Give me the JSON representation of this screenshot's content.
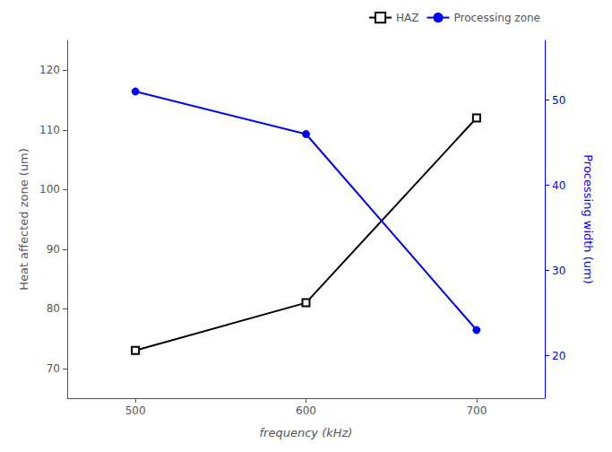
{
  "chart_data": {
    "type": "line",
    "xlabel": "frequency (kHz)",
    "ylabel": "Heat affected zone (um)",
    "y2label": "Processing width (um)",
    "x": [
      500,
      600,
      700
    ],
    "series": [
      {
        "name": "HAZ",
        "color": "#000000",
        "values": [
          73,
          81,
          112
        ],
        "marker": "square"
      },
      {
        "name": "Processing zone",
        "color": "#0000ff",
        "values": [
          51,
          46,
          23
        ],
        "marker": "circle",
        "axis": "y2"
      }
    ],
    "xlim": [
      460,
      740
    ],
    "xticks": [
      500,
      600,
      700
    ],
    "ylim": [
      65,
      125
    ],
    "yticks": [
      70,
      80,
      90,
      100,
      110,
      120
    ],
    "y2lim": [
      15,
      57
    ],
    "y2ticks": [
      20,
      30,
      40,
      50
    ],
    "grid": false,
    "legend": "upper right"
  }
}
